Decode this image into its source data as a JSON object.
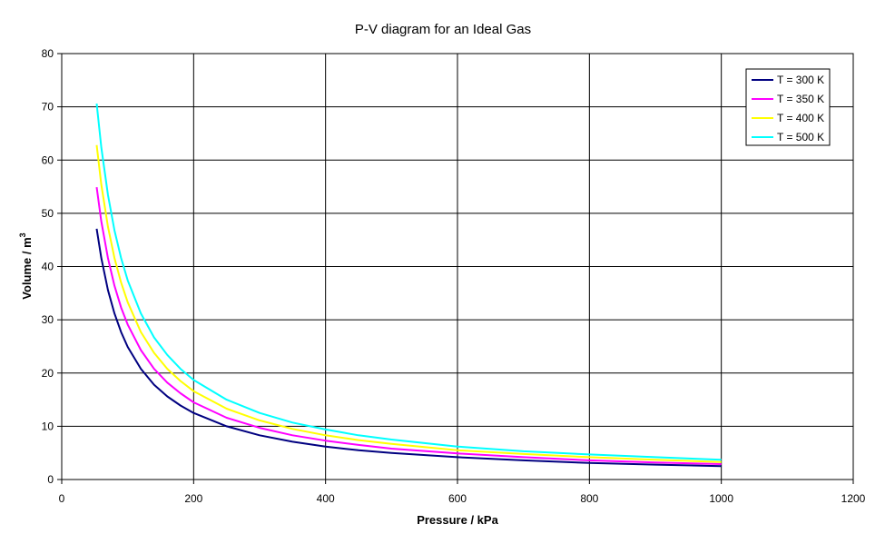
{
  "chart_data": {
    "type": "line",
    "title": "P-V diagram for an Ideal Gas",
    "xlabel": "Pressure / kPa",
    "ylabel_main": "Volume / m",
    "ylabel_sup": "3",
    "xlim": [
      0,
      1200
    ],
    "ylim": [
      0,
      80
    ],
    "xticks": [
      0,
      200,
      400,
      600,
      800,
      1000,
      1200
    ],
    "yticks": [
      0,
      10,
      20,
      30,
      40,
      50,
      60,
      70,
      80
    ],
    "xtick_labels": [
      "0",
      "200",
      "400",
      "600",
      "800",
      "1000",
      "1200"
    ],
    "ytick_labels": [
      "0",
      "10",
      "20",
      "30",
      "40",
      "50",
      "60",
      "70",
      "80"
    ],
    "grid": true,
    "legend_position": "top-right",
    "x": [
      53,
      60,
      70,
      80,
      90,
      100,
      120,
      140,
      160,
      180,
      200,
      250,
      300,
      350,
      400,
      450,
      500,
      600,
      700,
      800,
      900,
      1000
    ],
    "series": [
      {
        "name": "T = 300 K",
        "color": "#000080",
        "values": [
          47.1,
          41.6,
          35.6,
          31.2,
          27.7,
          24.9,
          20.8,
          17.8,
          15.6,
          13.9,
          12.5,
          10.0,
          8.3,
          7.1,
          6.2,
          5.5,
          5.0,
          4.2,
          3.6,
          3.1,
          2.8,
          2.5
        ]
      },
      {
        "name": "T = 350 K",
        "color": "#FF00FF",
        "values": [
          54.9,
          48.5,
          41.6,
          36.4,
          32.3,
          29.1,
          24.3,
          20.8,
          18.2,
          16.2,
          14.5,
          11.6,
          9.7,
          8.3,
          7.3,
          6.5,
          5.8,
          4.9,
          4.2,
          3.6,
          3.2,
          2.9
        ]
      },
      {
        "name": "T = 400 K",
        "color": "#FFFF00",
        "values": [
          62.8,
          55.4,
          47.5,
          41.6,
          37.0,
          33.3,
          27.7,
          23.8,
          20.8,
          18.5,
          16.6,
          13.3,
          11.1,
          9.5,
          8.3,
          7.4,
          6.7,
          5.5,
          4.8,
          4.2,
          3.7,
          3.3
        ]
      },
      {
        "name": "T = 500 K",
        "color": "#00FFFF",
        "values": [
          70.6,
          62.4,
          53.5,
          46.8,
          41.6,
          37.4,
          31.2,
          26.7,
          23.4,
          20.8,
          18.7,
          15.0,
          12.5,
          10.7,
          9.4,
          8.3,
          7.5,
          6.2,
          5.3,
          4.7,
          4.2,
          3.7
        ]
      }
    ]
  }
}
